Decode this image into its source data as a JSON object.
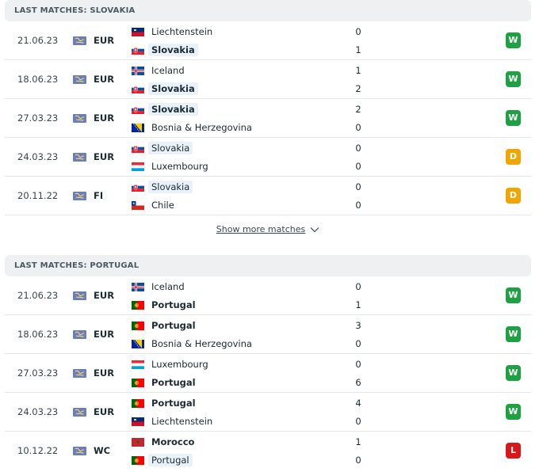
{
  "sections": [
    {
      "title": "LAST MATCHES: SLOVAKIA",
      "matches": [
        {
          "date": "21.06.23",
          "competition": "EUR",
          "home": "Liechtenstein",
          "away": "Slovakia",
          "home_score": "0",
          "away_score": "1",
          "result": "W",
          "home_flag": "liechtenstein",
          "away_flag": "slovakia",
          "hl": "away",
          "winner": "away"
        },
        {
          "date": "18.06.23",
          "competition": "EUR",
          "home": "Iceland",
          "away": "Slovakia",
          "home_score": "1",
          "away_score": "2",
          "result": "W",
          "home_flag": "iceland",
          "away_flag": "slovakia",
          "hl": "away",
          "winner": "away"
        },
        {
          "date": "27.03.23",
          "competition": "EUR",
          "home": "Slovakia",
          "away": "Bosnia & Herzegovina",
          "home_score": "2",
          "away_score": "0",
          "result": "W",
          "home_flag": "slovakia",
          "away_flag": "bosnia",
          "hl": "home",
          "winner": "home"
        },
        {
          "date": "24.03.23",
          "competition": "EUR",
          "home": "Slovakia",
          "away": "Luxembourg",
          "home_score": "0",
          "away_score": "0",
          "result": "D",
          "home_flag": "slovakia",
          "away_flag": "luxembourg",
          "hl": "home",
          "winner": "none"
        },
        {
          "date": "20.11.22",
          "competition": "FI",
          "home": "Slovakia",
          "away": "Chile",
          "home_score": "0",
          "away_score": "0",
          "result": "D",
          "home_flag": "slovakia",
          "away_flag": "chile",
          "hl": "home",
          "winner": "none"
        }
      ],
      "show_more": "Show more matches"
    },
    {
      "title": "LAST MATCHES: PORTUGAL",
      "matches": [
        {
          "date": "21.06.23",
          "competition": "EUR",
          "home": "Iceland",
          "away": "Portugal",
          "home_score": "0",
          "away_score": "1",
          "result": "W",
          "home_flag": "iceland",
          "away_flag": "portugal",
          "hl": "none",
          "winner": "away"
        },
        {
          "date": "18.06.23",
          "competition": "EUR",
          "home": "Portugal",
          "away": "Bosnia & Herzegovina",
          "home_score": "3",
          "away_score": "0",
          "result": "W",
          "home_flag": "portugal",
          "away_flag": "bosnia",
          "hl": "none",
          "winner": "home"
        },
        {
          "date": "27.03.23",
          "competition": "EUR",
          "home": "Luxembourg",
          "away": "Portugal",
          "home_score": "0",
          "away_score": "6",
          "result": "W",
          "home_flag": "luxembourg",
          "away_flag": "portugal",
          "hl": "none",
          "winner": "away"
        },
        {
          "date": "24.03.23",
          "competition": "EUR",
          "home": "Portugal",
          "away": "Liechtenstein",
          "home_score": "4",
          "away_score": "0",
          "result": "W",
          "home_flag": "portugal",
          "away_flag": "liechtenstein",
          "hl": "none",
          "winner": "home"
        },
        {
          "date": "10.12.22",
          "competition": "WC",
          "home": "Morocco",
          "away": "Portugal",
          "home_score": "1",
          "away_score": "0",
          "result": "L",
          "home_flag": "morocco",
          "away_flag": "portugal",
          "hl": "away",
          "winner": "home"
        }
      ]
    }
  ],
  "colors": {
    "win": "#1ea142",
    "draw": "#f0a500",
    "loss": "#d91919",
    "highlight": "#e9f2fb"
  }
}
